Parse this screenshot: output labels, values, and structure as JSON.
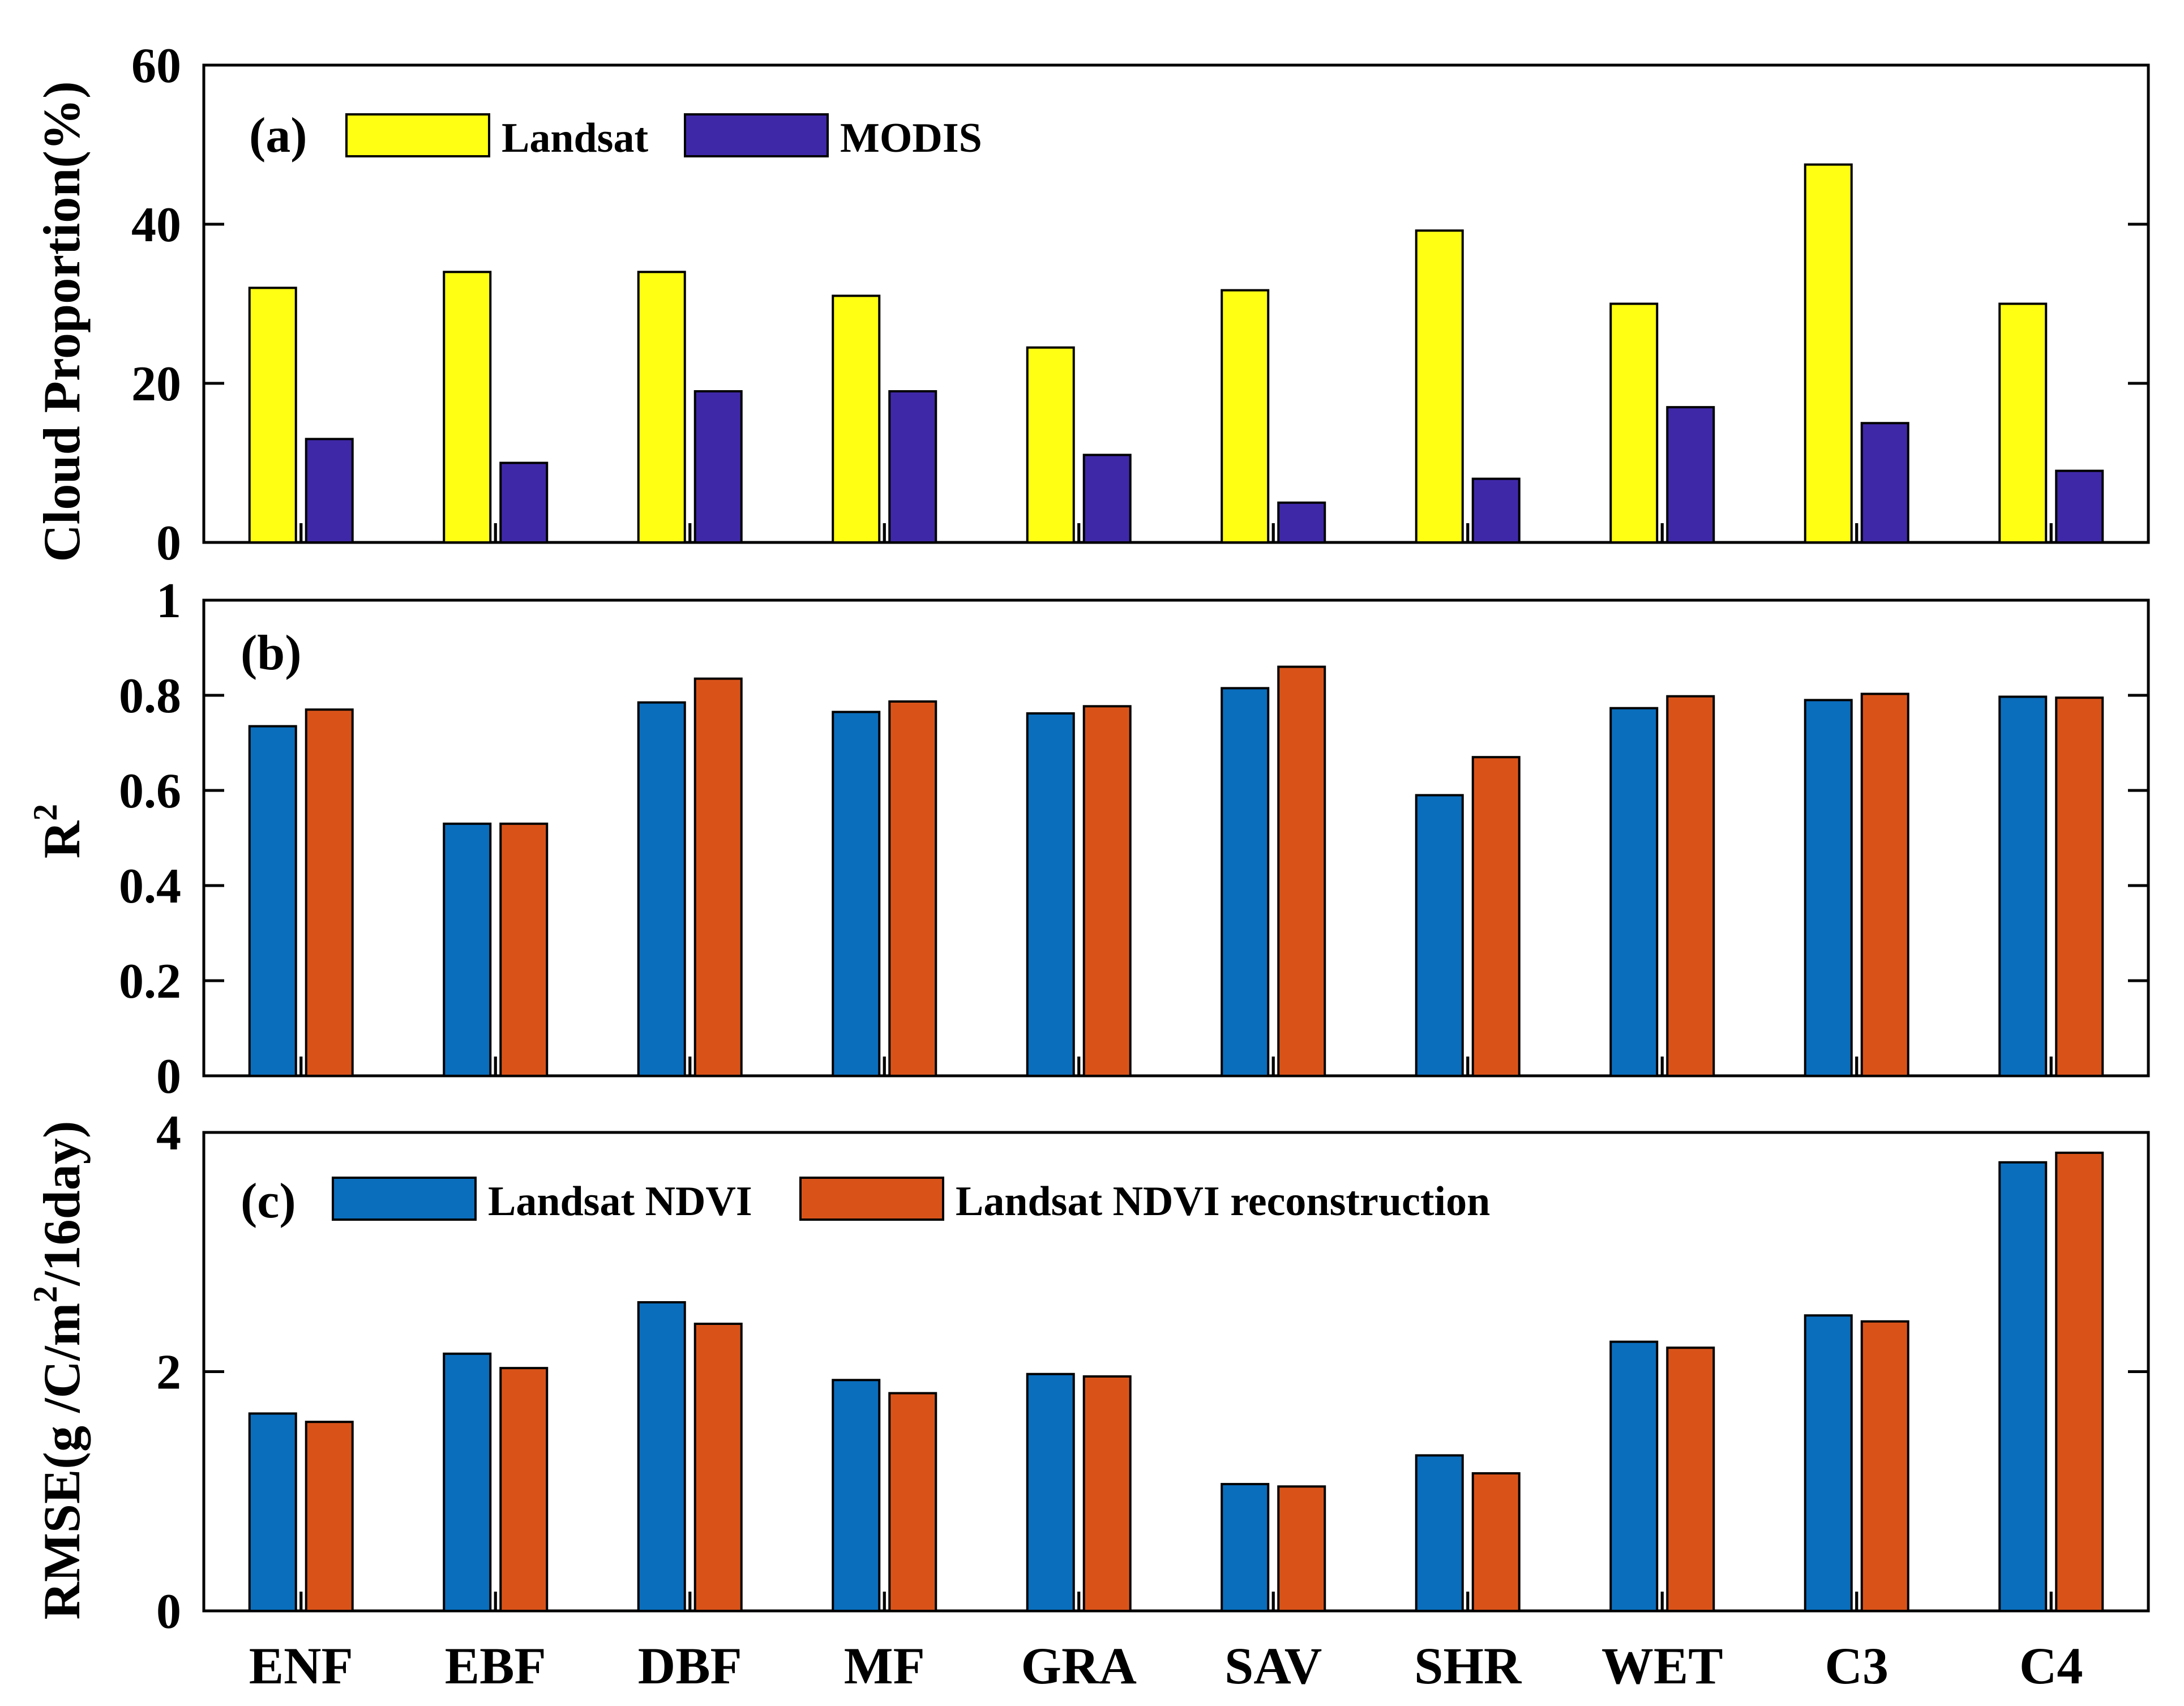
{
  "chart_data": [
    {
      "type": "bar",
      "panel_label": "(a)",
      "ylabel": "Cloud Proportion(%)",
      "ylim": [
        0,
        60
      ],
      "yticks": [
        "0",
        "20",
        "40",
        "60"
      ],
      "legend_position": "top-left",
      "categories": [
        "ENF",
        "EBF",
        "DBF",
        "MF",
        "GRA",
        "SAV",
        "SHR",
        "WET",
        "C3",
        "C4"
      ],
      "series": [
        {
          "name": "Landsat",
          "color": "#ffff14",
          "values": [
            32,
            34,
            34,
            31,
            24.5,
            31.7,
            39.2,
            30,
            47.5,
            30
          ]
        },
        {
          "name": "MODIS",
          "color": "#3f28a8",
          "values": [
            13,
            10,
            19,
            19,
            11,
            5,
            8,
            17,
            15,
            9
          ]
        }
      ]
    },
    {
      "type": "bar",
      "panel_label": "(b)",
      "ylabel": "R",
      "ylabel_superscript": "2",
      "ylim": [
        0,
        1
      ],
      "yticks": [
        "0",
        "0.2",
        "0.4",
        "0.6",
        "0.8",
        "1"
      ],
      "categories": [
        "ENF",
        "EBF",
        "DBF",
        "MF",
        "GRA",
        "SAV",
        "SHR",
        "WET",
        "C3",
        "C4"
      ],
      "series": [
        {
          "name": "Landsat NDVI",
          "color": "#0a6ebd",
          "values": [
            0.735,
            0.53,
            0.785,
            0.765,
            0.762,
            0.815,
            0.59,
            0.773,
            0.79,
            0.797
          ]
        },
        {
          "name": "Landsat NDVI reconstruction",
          "color": "#d95319",
          "values": [
            0.77,
            0.53,
            0.835,
            0.787,
            0.777,
            0.86,
            0.67,
            0.798,
            0.803,
            0.795
          ]
        }
      ]
    },
    {
      "type": "bar",
      "panel_label": "(c)",
      "ylabel": "RMSE(g /C/m",
      "ylabel_superscript": "2",
      "ylabel_suffix": "/16day)",
      "ylim": [
        0,
        4
      ],
      "yticks": [
        "0",
        "2",
        "4"
      ],
      "legend_position": "top-left",
      "categories": [
        "ENF",
        "EBF",
        "DBF",
        "MF",
        "GRA",
        "SAV",
        "SHR",
        "WET",
        "C3",
        "C4"
      ],
      "series": [
        {
          "name": "Landsat NDVI",
          "color": "#0a6ebd",
          "values": [
            1.65,
            2.15,
            2.58,
            1.93,
            1.98,
            1.06,
            1.3,
            2.25,
            2.47,
            3.75
          ]
        },
        {
          "name": "Landsat NDVI reconstruction",
          "color": "#d95319",
          "values": [
            1.58,
            2.03,
            2.4,
            1.82,
            1.96,
            1.04,
            1.15,
            2.2,
            2.42,
            3.83
          ]
        }
      ]
    }
  ]
}
